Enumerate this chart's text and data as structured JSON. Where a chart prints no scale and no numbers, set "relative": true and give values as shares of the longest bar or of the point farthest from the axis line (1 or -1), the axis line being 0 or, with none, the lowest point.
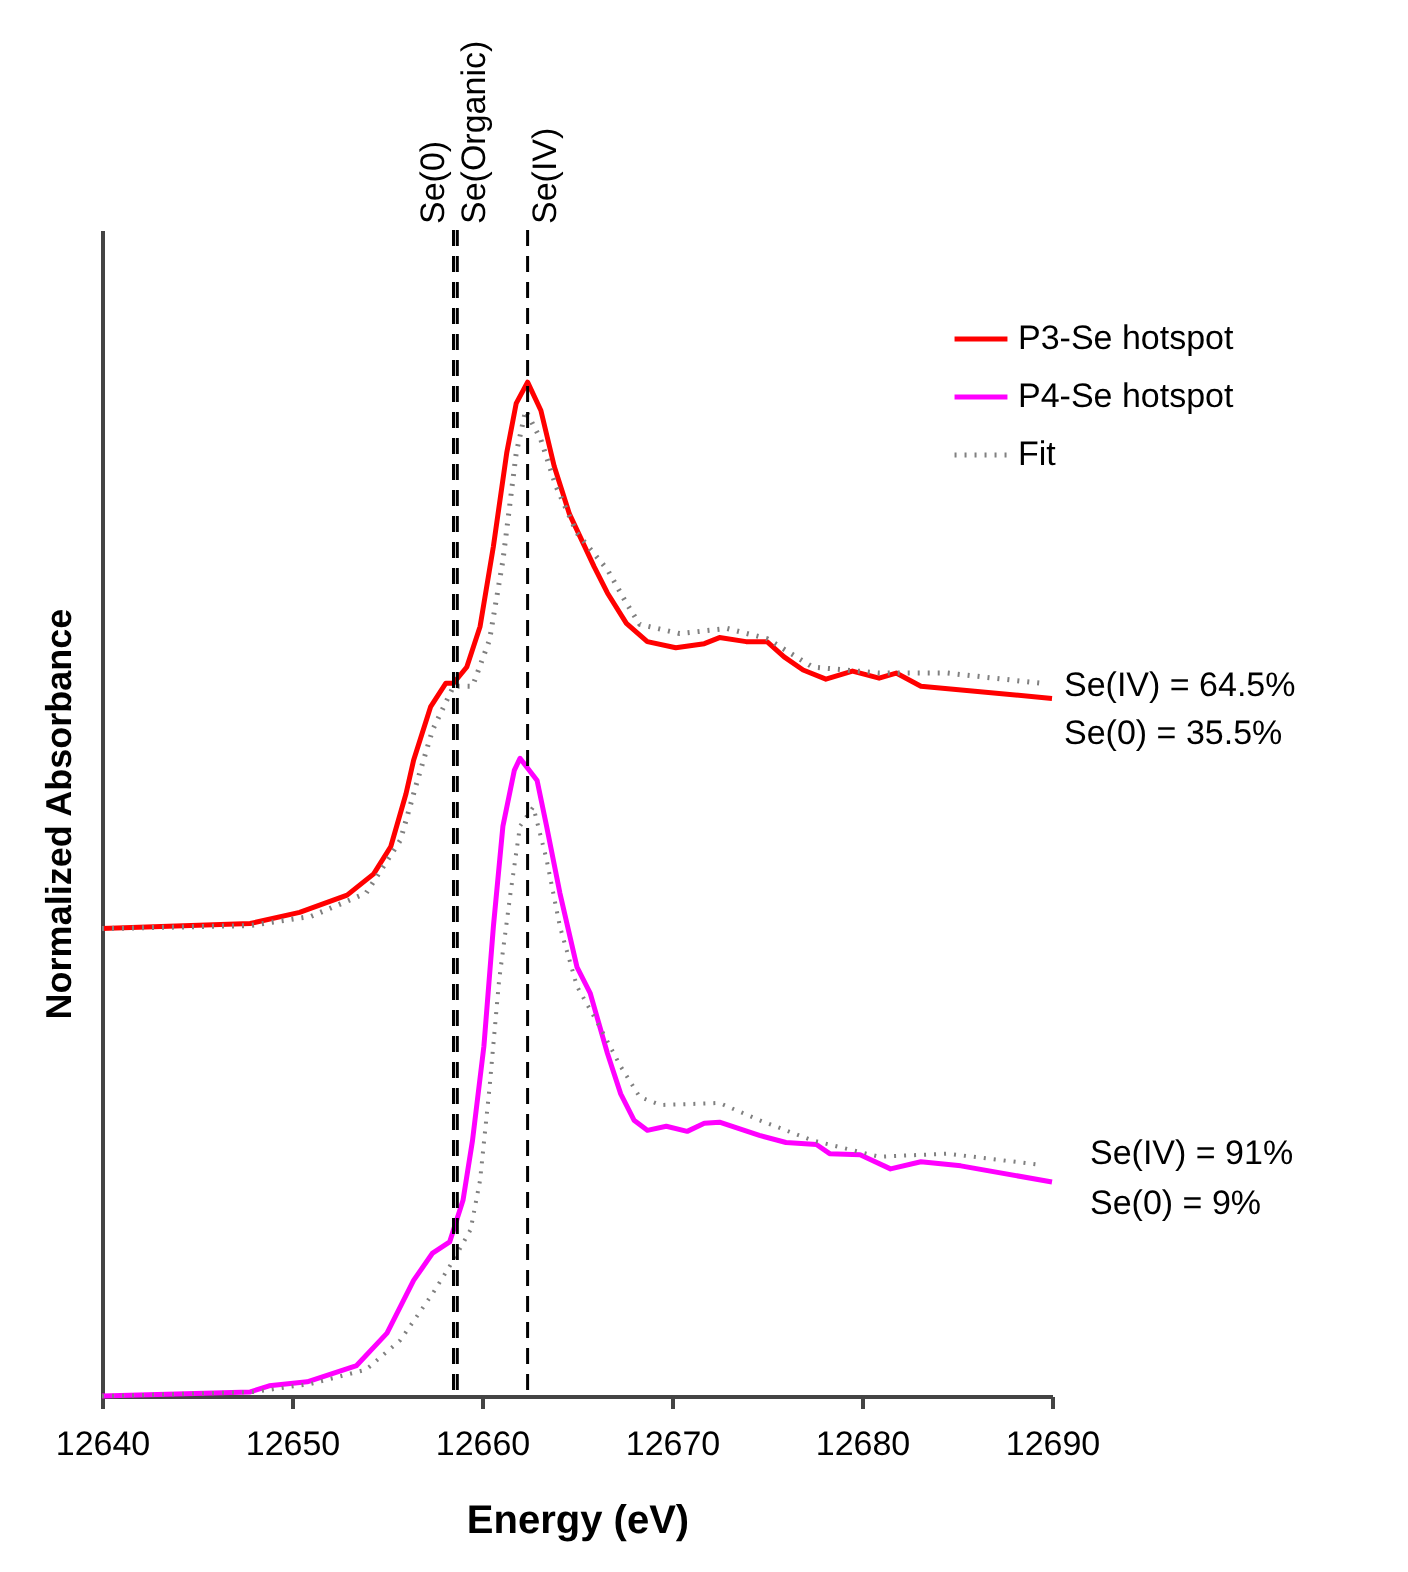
{
  "chart_data": {
    "type": "line",
    "relative": true,
    "xlabel": "Energy (eV)",
    "ylabel": "Normalized Absorbance",
    "xlim": [
      12640,
      12690
    ],
    "xticks": [
      12640,
      12650,
      12660,
      12670,
      12680,
      12690
    ],
    "grid": false,
    "legend": "top right",
    "marker": "none",
    "series": [
      {
        "name": "P3-Se hotspot",
        "color": "#ff0000",
        "line_style": "solid",
        "x": [
          12640,
          12647.8,
          12650.4,
          12652.9,
          12654.3,
          12655.2,
          12656.0,
          12656.4,
          12657.3,
          12658.1,
          12658.5,
          12659.2,
          12659.9,
          12660.6,
          12661.3,
          12661.8,
          12662.4,
          12663.1,
          12663.8,
          12664.6,
          12665.9,
          12666.6,
          12667.6,
          12668.7,
          12670.2,
          12671.7,
          12672.5,
          12673.9,
          12675.0,
          12675.9,
          12676.9,
          12678.1,
          12679.5,
          12680.9,
          12681.8,
          12683.1,
          12690
        ],
        "values": [
          0.461,
          0.466,
          0.477,
          0.494,
          0.515,
          0.542,
          0.594,
          0.627,
          0.68,
          0.703,
          0.703,
          0.719,
          0.759,
          0.838,
          0.93,
          0.979,
          1.0,
          0.972,
          0.917,
          0.87,
          0.818,
          0.792,
          0.762,
          0.744,
          0.738,
          0.742,
          0.748,
          0.744,
          0.744,
          0.729,
          0.716,
          0.707,
          0.715,
          0.708,
          0.713,
          0.7,
          0.688
        ]
      },
      {
        "name": "P4-Se hotspot",
        "color": "#ff00ff",
        "line_style": "solid",
        "x": [
          12640,
          12647.8,
          12648.8,
          12650.8,
          12653.4,
          12655.0,
          12656.4,
          12657.4,
          12658.3,
          12659.0,
          12659.5,
          12660.1,
          12660.6,
          12661.1,
          12661.7,
          12662.0,
          12662.9,
          12663.4,
          12664.1,
          12665.0,
          12665.7,
          12666.6,
          12667.3,
          12668.0,
          12668.7,
          12669.7,
          12670.8,
          12671.7,
          12672.5,
          12674.6,
          12676.0,
          12677.6,
          12678.3,
          12679.9,
          12681.5,
          12683.1,
          12685.2,
          12690
        ],
        "values": [
          0.0,
          0.004,
          0.01,
          0.014,
          0.03,
          0.062,
          0.114,
          0.141,
          0.152,
          0.193,
          0.252,
          0.345,
          0.463,
          0.562,
          0.617,
          0.629,
          0.607,
          0.562,
          0.496,
          0.423,
          0.397,
          0.338,
          0.298,
          0.272,
          0.262,
          0.266,
          0.261,
          0.269,
          0.27,
          0.257,
          0.25,
          0.248,
          0.239,
          0.238,
          0.224,
          0.231,
          0.227,
          0.211
        ]
      },
      {
        "name": "Fit",
        "color": "#808080",
        "line_style": "dotted",
        "x": [
          12640,
          12647.8,
          12651,
          12653.9,
          12655.7,
          12656.6,
          12657.4,
          12658.5,
          12659.5,
          12660.4,
          12661.1,
          12661.8,
          12662.3,
          12663.1,
          12663.9,
          12665.0,
          12666.6,
          12667.6,
          12668.3,
          12670.4,
          12672.9,
          12675.0,
          12677.4,
          12680.9,
          12684.5,
          12689.4
        ],
        "values": [
          0.461,
          0.464,
          0.473,
          0.496,
          0.548,
          0.607,
          0.657,
          0.7,
          0.7,
          0.746,
          0.824,
          0.93,
          0.972,
          0.943,
          0.897,
          0.851,
          0.815,
          0.782,
          0.761,
          0.752,
          0.757,
          0.747,
          0.719,
          0.713,
          0.713,
          0.703
        ]
      },
      {
        "color": "#808080",
        "line_style": "dotted",
        "x": [
          12640,
          12648,
          12651,
          12653.9,
          12655.7,
          12657.4,
          12658.5,
          12659.4,
          12659.9,
          12660.4,
          12660.9,
          12661.5,
          12662.0,
          12662.7,
          12663.4,
          12664.1,
          12665.0,
          12666.2,
          12667.3,
          12668.3,
          12669.4,
          12672.5,
          12674.6,
          12677.4,
          12680.9,
          12684.5,
          12689.4
        ],
        "values": [
          0.0,
          0.004,
          0.012,
          0.026,
          0.055,
          0.101,
          0.134,
          0.164,
          0.213,
          0.305,
          0.41,
          0.496,
          0.562,
          0.581,
          0.529,
          0.463,
          0.404,
          0.364,
          0.325,
          0.295,
          0.287,
          0.289,
          0.272,
          0.252,
          0.236,
          0.239,
          0.228
        ]
      }
    ],
    "ref_lines": [
      {
        "axis": "x",
        "value": 12658.5,
        "label": "Se(0)",
        "color": "#000000",
        "line_style": "dashed"
      },
      {
        "axis": "x",
        "value": 12658.7,
        "label": "Se(Organic)",
        "color": "#000000",
        "line_style": "dashed"
      },
      {
        "axis": "x",
        "value": 12662.4,
        "label": "Se(IV)",
        "color": "#000000",
        "line_style": "dashed"
      }
    ],
    "annotations": [
      "Se(IV) = 64.5%",
      "Se(0) = 35.5%",
      "Se(IV) = 91%",
      "Se(0) = 9%"
    ]
  }
}
